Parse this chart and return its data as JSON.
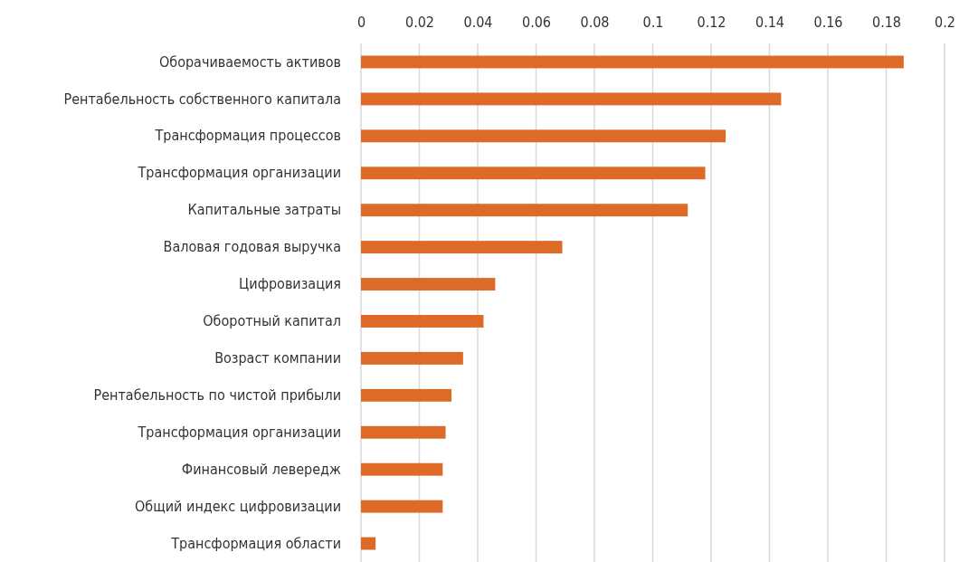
{
  "chart_data": {
    "type": "bar",
    "orientation": "horizontal",
    "categories": [
      "Оборачиваемость активов",
      "Рентабельность собственного капитала",
      "Трансформация процессов",
      "Трансформация организации",
      "Капитальные затраты",
      "Валовая годовая выручка",
      "Цифровизация",
      "Оборотный капитал",
      "Возраст компании",
      "Рентабельность по чистой прибыли",
      "Трансформация организации",
      "Финансовый левередж",
      "Общий индекс цифровизации",
      "Трансформация области"
    ],
    "values": [
      0.186,
      0.144,
      0.125,
      0.118,
      0.112,
      0.069,
      0.046,
      0.042,
      0.035,
      0.031,
      0.029,
      0.028,
      0.028,
      0.005
    ],
    "color": "#dd6a27",
    "xlim": [
      0,
      0.2
    ],
    "xticks": [
      0,
      0.02,
      0.04,
      0.06,
      0.08,
      0.1,
      0.12,
      0.14,
      0.16,
      0.18,
      0.2
    ],
    "grid": "x"
  }
}
